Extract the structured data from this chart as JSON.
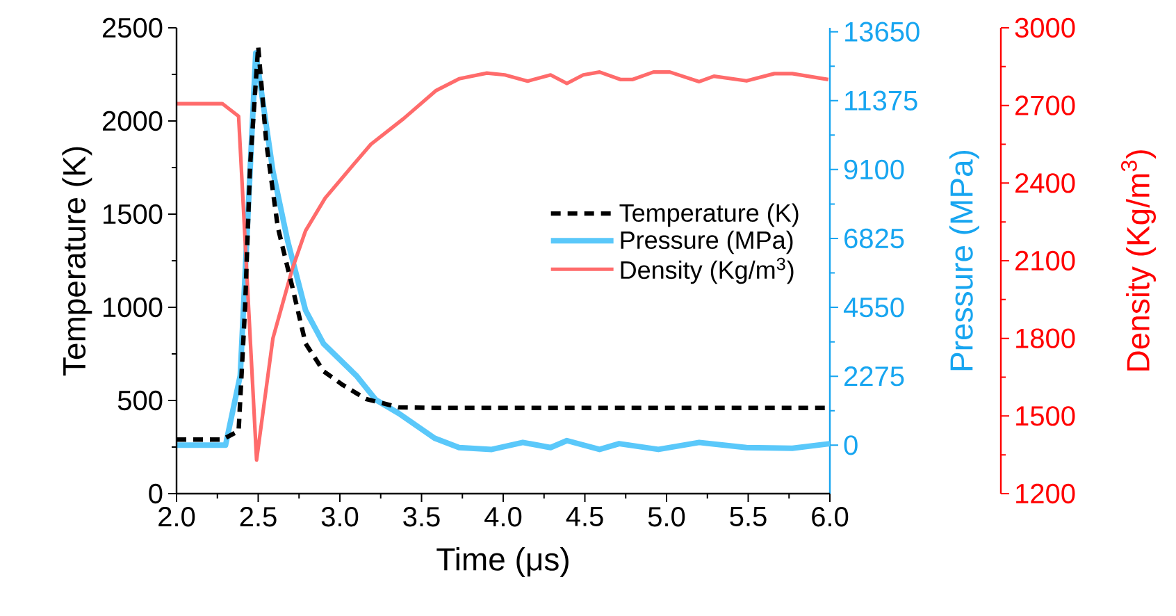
{
  "chart_data": {
    "type": "line",
    "xlabel": "Time (μs)",
    "ylabel": "Temperature (K)",
    "y2label": "Pressure (MPa)",
    "y3label": "Density (Kg/m$^{3}$)",
    "xlim": [
      2.0,
      6.0
    ],
    "xticks": [
      {
        "value": 2.0,
        "label": "2.0"
      },
      {
        "value": 2.5,
        "label": "2.5"
      },
      {
        "value": 3.0,
        "label": "3.0"
      },
      {
        "value": 3.5,
        "label": "3.5"
      },
      {
        "value": 4.0,
        "label": "4.0"
      },
      {
        "value": 4.5,
        "label": "4.5"
      },
      {
        "value": 5.0,
        "label": "5.0"
      },
      {
        "value": 5.5,
        "label": "5.5"
      },
      {
        "value": 6.0,
        "label": "6.0"
      }
    ],
    "ylim": [
      0,
      2500
    ],
    "yticks": [
      0,
      500,
      1000,
      1500,
      2000,
      2500
    ],
    "y2lim": [
      -1600,
      13780
    ],
    "y2ticks": [
      0,
      2275,
      4550,
      6825,
      9100,
      11375,
      13650
    ],
    "y3lim": [
      1200,
      3000
    ],
    "y3ticks": [
      1200,
      1500,
      1800,
      2100,
      2400,
      2700,
      3000
    ],
    "legend": "right",
    "series": [
      {
        "name": "Temperature (K)",
        "color": "#000000",
        "line_style": "dashed",
        "x": [
          2.0,
          2.28,
          2.38,
          2.42,
          2.45,
          2.5,
          2.55,
          2.62,
          2.71,
          2.79,
          2.9,
          3.02,
          3.16,
          3.36,
          3.6,
          4.0,
          4.5,
          5.0,
          5.5,
          6.0
        ],
        "values": [
          290,
          290,
          336,
          1007,
          1753,
          2400,
          1880,
          1430,
          1105,
          806,
          657,
          582,
          508,
          463,
          460,
          460,
          460,
          460,
          460,
          460
        ]
      },
      {
        "name": "Pressure (MPa)",
        "color": "#5ac8fa",
        "axis": "y2",
        "x": [
          2.0,
          2.3,
          2.39,
          2.485,
          2.59,
          2.68,
          2.79,
          2.9,
          3.1,
          3.22,
          3.36,
          3.58,
          3.73,
          3.93,
          4.12,
          4.29,
          4.39,
          4.59,
          4.71,
          4.95,
          5.2,
          5.49,
          5.77,
          6.0
        ],
        "values": [
          0,
          0,
          2300,
          12950,
          9050,
          6750,
          4450,
          3350,
          2300,
          1500,
          1050,
          230,
          -80,
          -140,
          90,
          -80,
          150,
          -140,
          50,
          -140,
          90,
          -80,
          -100,
          50
        ]
      },
      {
        "name": "Density (Kg/m$^{3}$)",
        "color": "#ff6b6b",
        "axis": "y3",
        "x": [
          2.0,
          2.28,
          2.38,
          2.49,
          2.59,
          2.71,
          2.79,
          2.91,
          3.08,
          3.19,
          3.39,
          3.59,
          3.73,
          3.9,
          4.01,
          4.15,
          4.29,
          4.39,
          4.49,
          4.59,
          4.72,
          4.79,
          4.92,
          5.02,
          5.2,
          5.29,
          5.49,
          5.66,
          5.77,
          5.99
        ],
        "values": [
          2707,
          2707,
          2658,
          1330,
          1800,
          2071,
          2216,
          2342,
          2469,
          2550,
          2649,
          2758,
          2803,
          2825,
          2818,
          2794,
          2818,
          2785,
          2818,
          2829,
          2800,
          2800,
          2829,
          2829,
          2792,
          2813,
          2795,
          2823,
          2823,
          2800
        ]
      }
    ]
  }
}
